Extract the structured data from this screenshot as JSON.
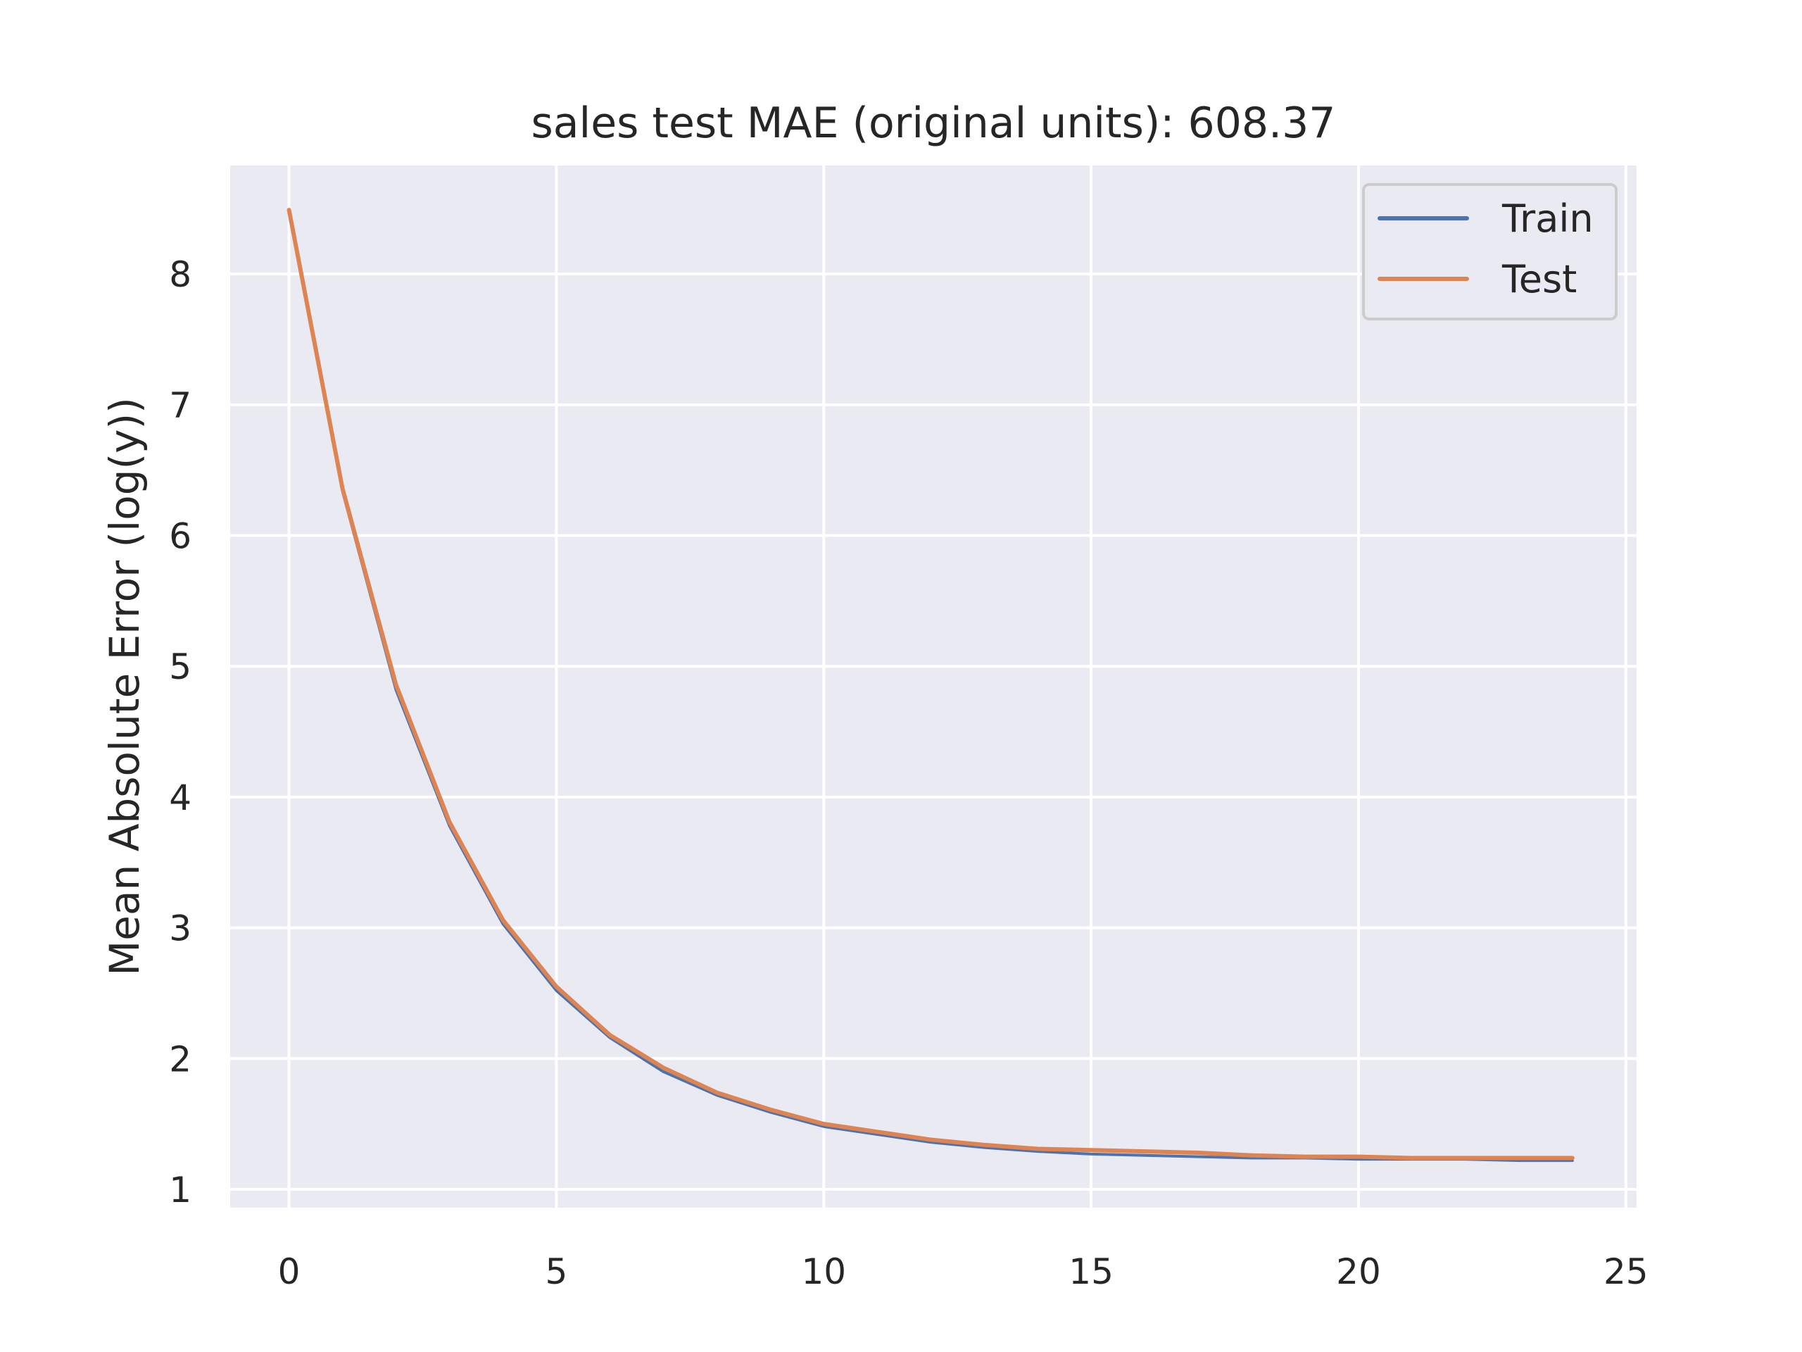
{
  "chart_data": {
    "type": "line",
    "title": "sales test MAE (original units): 608.37",
    "xlabel": "",
    "ylabel": "Mean Absolute Error (log(y))",
    "xlim": [
      -1.1,
      25.2
    ],
    "ylim": [
      0.86,
      8.83
    ],
    "x_ticks": [
      0,
      5,
      10,
      15,
      20,
      25
    ],
    "y_ticks": [
      1,
      2,
      3,
      4,
      5,
      6,
      7,
      8
    ],
    "grid": true,
    "legend_position": "top-right",
    "x": [
      0,
      1,
      2,
      3,
      4,
      5,
      6,
      7,
      8,
      9,
      10,
      11,
      12,
      13,
      14,
      15,
      16,
      17,
      18,
      19,
      20,
      21,
      22,
      23,
      24
    ],
    "series": [
      {
        "name": "Train",
        "color": "#4c72b0",
        "values": [
          8.49,
          6.34,
          4.82,
          3.78,
          3.03,
          2.52,
          2.16,
          1.9,
          1.72,
          1.59,
          1.48,
          1.42,
          1.36,
          1.32,
          1.29,
          1.27,
          1.26,
          1.25,
          1.24,
          1.24,
          1.23,
          1.23,
          1.23,
          1.22,
          1.22
        ]
      },
      {
        "name": "Test",
        "color": "#dd8452",
        "values": [
          8.49,
          6.36,
          4.86,
          3.81,
          3.06,
          2.55,
          2.18,
          1.93,
          1.74,
          1.61,
          1.5,
          1.44,
          1.38,
          1.34,
          1.31,
          1.3,
          1.29,
          1.28,
          1.26,
          1.25,
          1.25,
          1.24,
          1.24,
          1.24,
          1.24
        ]
      }
    ]
  }
}
